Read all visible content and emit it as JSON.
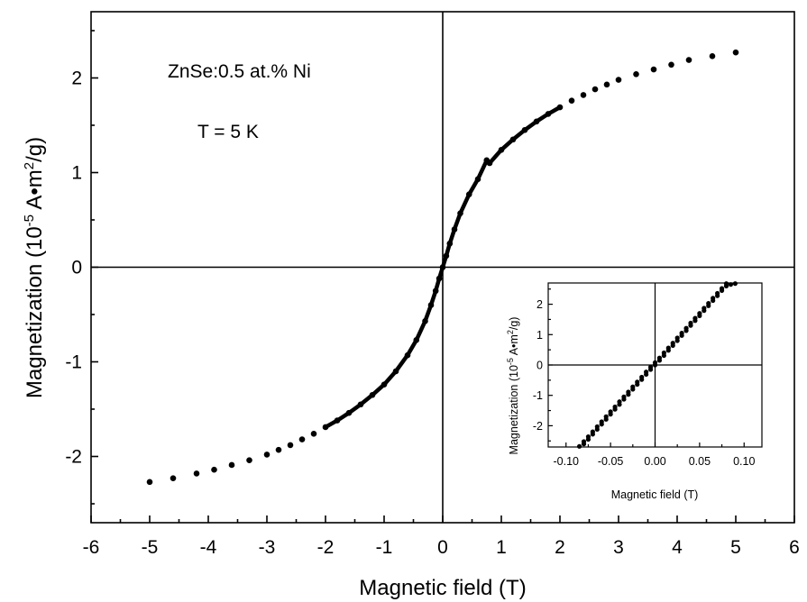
{
  "chart_data": [
    {
      "type": "scatter",
      "xlabel": "Magnetic field (T)",
      "ylabel_main": "Magnetization (10",
      "ylabel_exp": "-5",
      "ylabel_unit": " A•m",
      "ylabel_unit_exp": "2",
      "ylabel_end": "/g)",
      "xlim": [
        -6,
        6
      ],
      "ylim": [
        -2.7,
        2.7
      ],
      "xticks": [
        -6,
        -5,
        -4,
        -3,
        -2,
        -1,
        0,
        1,
        2,
        3,
        4,
        5,
        6
      ],
      "yticks": [
        -2,
        -1,
        0,
        1,
        2
      ],
      "grid": false,
      "annotations": [
        "ZnSe:0.5 at.% Ni",
        "T = 5 K"
      ],
      "series": [
        {
          "x": [
            -5.0,
            -4.6,
            -4.2,
            -3.9,
            -3.6,
            -3.3,
            -3.0,
            -2.8,
            -2.6,
            -2.4,
            -2.2,
            -2.0,
            -1.8,
            -1.6,
            -1.4,
            -1.2,
            -1.0,
            -0.8,
            -0.6,
            -0.45,
            -0.3,
            -0.2,
            -0.12,
            -0.06,
            0.0,
            0.06,
            0.12,
            0.2,
            0.3,
            0.45,
            0.6,
            0.75,
            0.8,
            1.0,
            1.2,
            1.4,
            1.6,
            1.8,
            2.0,
            2.2,
            2.4,
            2.6,
            2.8,
            3.0,
            3.3,
            3.6,
            3.9,
            4.2,
            4.6,
            5.0
          ],
          "y": [
            -2.27,
            -2.23,
            -2.18,
            -2.14,
            -2.09,
            -2.04,
            -1.98,
            -1.93,
            -1.88,
            -1.82,
            -1.76,
            -1.69,
            -1.62,
            -1.54,
            -1.45,
            -1.35,
            -1.24,
            -1.1,
            -0.93,
            -0.77,
            -0.57,
            -0.4,
            -0.25,
            -0.12,
            0.0,
            0.12,
            0.25,
            0.4,
            0.57,
            0.77,
            0.93,
            1.13,
            1.1,
            1.24,
            1.35,
            1.45,
            1.54,
            1.62,
            1.69,
            1.76,
            1.82,
            1.88,
            1.93,
            1.98,
            2.04,
            2.09,
            2.14,
            2.19,
            2.23,
            2.27
          ]
        }
      ]
    },
    {
      "type": "scatter",
      "xlabel": "Magnetic field (T)",
      "ylabel_main": "Magnetization (10",
      "ylabel_exp": "-5",
      "ylabel_unit": " A•m",
      "ylabel_unit_exp": "2",
      "ylabel_end": "/g)",
      "xlim": [
        -0.12,
        0.12
      ],
      "ylim": [
        -2.7,
        2.7
      ],
      "xticks": [
        -0.1,
        -0.05,
        0.0,
        0.05,
        0.1
      ],
      "xtick_labels": [
        "-0.10",
        "-0.05",
        "0.00",
        "0.05",
        "0.10"
      ],
      "yticks": [
        -2,
        -1,
        0,
        1,
        2
      ],
      "grid": false,
      "series": [
        {
          "x": [
            -0.08,
            -0.075,
            -0.07,
            -0.065,
            -0.06,
            -0.055,
            -0.05,
            -0.045,
            -0.04,
            -0.035,
            -0.03,
            -0.025,
            -0.02,
            -0.015,
            -0.01,
            -0.005,
            0.0,
            0.005,
            0.01,
            0.015,
            0.02,
            0.025,
            0.03,
            0.035,
            0.04,
            0.045,
            0.05,
            0.055,
            0.06,
            0.065,
            0.07,
            0.075,
            0.08,
            0.085,
            0.09
          ],
          "y": [
            -2.6,
            -2.45,
            -2.28,
            -2.12,
            -1.95,
            -1.79,
            -1.62,
            -1.46,
            -1.3,
            -1.13,
            -0.97,
            -0.8,
            -0.64,
            -0.48,
            -0.31,
            -0.15,
            0.0,
            0.15,
            0.31,
            0.48,
            0.64,
            0.8,
            0.97,
            1.13,
            1.3,
            1.46,
            1.62,
            1.79,
            1.95,
            2.12,
            2.28,
            2.45,
            2.6,
            2.65,
            2.68
          ]
        },
        {
          "x": [
            -0.085,
            -0.08,
            -0.075,
            -0.07,
            -0.065,
            -0.06,
            -0.055,
            -0.05,
            -0.045,
            -0.04,
            -0.035,
            -0.03,
            -0.025,
            -0.02,
            -0.015,
            -0.01,
            -0.005,
            0.0,
            0.005,
            0.01,
            0.015,
            0.02,
            0.025,
            0.03,
            0.035,
            0.04,
            0.045,
            0.05,
            0.055,
            0.06,
            0.065,
            0.07,
            0.075,
            0.08
          ],
          "y": [
            -2.68,
            -2.52,
            -2.36,
            -2.2,
            -2.03,
            -1.87,
            -1.7,
            -1.54,
            -1.38,
            -1.21,
            -1.05,
            -0.89,
            -0.72,
            -0.56,
            -0.4,
            -0.23,
            -0.07,
            0.08,
            0.23,
            0.4,
            0.56,
            0.72,
            0.89,
            1.05,
            1.21,
            1.38,
            1.54,
            1.7,
            1.87,
            2.03,
            2.2,
            2.36,
            2.52,
            2.68
          ]
        }
      ]
    }
  ]
}
